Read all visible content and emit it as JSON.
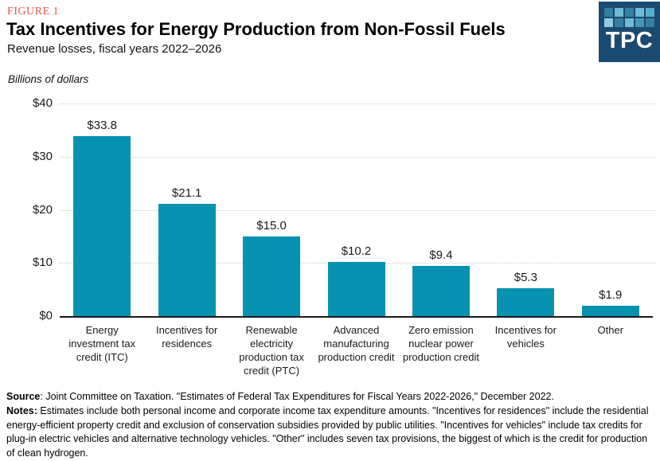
{
  "header": {
    "figure_label": "FIGURE 1",
    "title": "Tax Incentives for Energy Production from Non-Fossil Fuels",
    "subtitle": "Revenue losses, fiscal years 2022–2026"
  },
  "logo": {
    "text": "TPC",
    "background": "#1B4A70",
    "square_colors": [
      [
        "#35809F",
        "#6FBBD3",
        "#35809F",
        "#6FBBD3",
        "#57AECB"
      ],
      [
        "#8FCCDE",
        "#35809F",
        "#6FBBD3",
        "#4397BA",
        "#35809F"
      ]
    ]
  },
  "chart_data": {
    "type": "bar",
    "title": "Tax Incentives for Energy Production from Non-Fossil Fuels",
    "subtitle": "Revenue losses, fiscal years 2022–2026",
    "units_label": "Billions of dollars",
    "categories": [
      "Energy investment tax credit (ITC)",
      "Incentives for residences",
      "Renewable electricity production tax credit (PTC)",
      "Advanced manufacturing production credit",
      "Zero emission nuclear power production credit",
      "Incentives for vehicles",
      "Other"
    ],
    "values": [
      33.8,
      21.1,
      15.0,
      10.2,
      9.4,
      5.3,
      1.9
    ],
    "value_labels": [
      "$33.8",
      "$21.1",
      "$15.0",
      "$10.2",
      "$9.4",
      "$5.3",
      "$1.9"
    ],
    "ylim": [
      0,
      40
    ],
    "yticks": [
      {
        "value": 0,
        "label": "$0"
      },
      {
        "value": 10,
        "label": "$10"
      },
      {
        "value": 20,
        "label": "$20"
      },
      {
        "value": 30,
        "label": "$30"
      },
      {
        "value": 40,
        "label": "$40"
      }
    ],
    "grid": "horizontal-dotted",
    "legend": "none"
  },
  "footer": {
    "source_label": "Source",
    "source_text": ": Joint Committee on Taxation. \"Estimates of Federal Tax Expenditures for Fiscal Years 2022-2026,\" December 2022.",
    "notes_label": "Notes:",
    "notes_text": " Estimates include both personal income and corporate income tax expenditure amounts. \"Incentives for residences\" include the residential energy-efficient property credit and exclusion of conservation subsidies provided by public utilities. \"Incentives for vehicles\" include tax credits for plug-in electric vehicles and alternative technology vehicles. \"Other\" includes seven tax provisions, the biggest of which is the credit for production of clean hydrogen."
  },
  "colors": {
    "figure_label": "#E25649",
    "bar": "#0692B0",
    "gridline": "#CFCFCF",
    "axis_line": "#1A1A1A",
    "logo_background": "#1B4A70"
  }
}
